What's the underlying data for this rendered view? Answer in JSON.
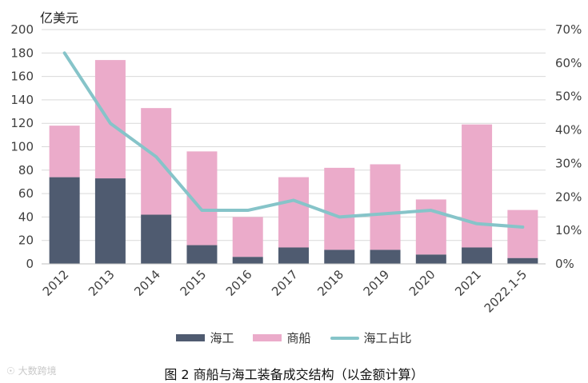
{
  "chart_data": {
    "type": "bar",
    "stacked": true,
    "unit_label": "亿美元",
    "categories": [
      "2012",
      "2013",
      "2014",
      "2015",
      "2016",
      "2017",
      "2018",
      "2019",
      "2020",
      "2021",
      "2022.1-5"
    ],
    "series": [
      {
        "name": "海工",
        "type": "bar",
        "axis": "left",
        "color": "#4f5b70",
        "values": [
          74,
          73,
          42,
          16,
          6,
          14,
          12,
          12,
          8,
          14,
          5
        ]
      },
      {
        "name": "商船",
        "type": "bar",
        "axis": "left",
        "color": "#ebabca",
        "values": [
          44,
          101,
          91,
          80,
          34,
          60,
          70,
          73,
          47,
          105,
          41
        ]
      },
      {
        "name": "海工占比",
        "type": "line",
        "axis": "right",
        "color": "#86c4c9",
        "values": [
          63,
          42,
          32,
          16,
          16,
          19,
          14,
          15,
          16,
          12,
          11
        ]
      }
    ],
    "y_left": {
      "min": 0,
      "max": 200,
      "ticks": [
        "0",
        "20",
        "40",
        "60",
        "80",
        "100",
        "120",
        "140",
        "160",
        "180",
        "200"
      ]
    },
    "y_right": {
      "min": 0,
      "max": 70,
      "ticks": [
        "0%",
        "10%",
        "20%",
        "30%",
        "40%",
        "50%",
        "60%",
        "70%"
      ]
    },
    "grid": true,
    "legend_position": "bottom",
    "caption": "图 2  商船与海工装备成交结构（以金额计算）"
  },
  "watermark": "大数跨境"
}
